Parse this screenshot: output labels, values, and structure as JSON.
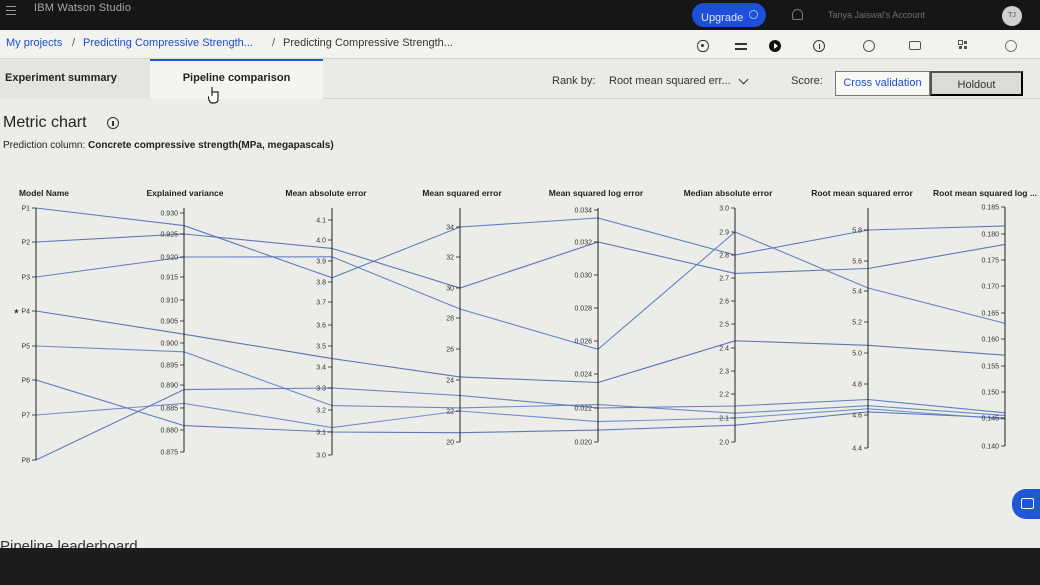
{
  "topbar": {
    "app_title": "IBM Watson Studio",
    "upgrade_label": "Upgrade",
    "account": "Tanya Jaiswal's Account",
    "avatar_initials": "TJ"
  },
  "breadcrumb": {
    "items": [
      "My projects",
      "Predicting Compressive Strength...",
      "Predicting Compressive Strength..."
    ]
  },
  "tabs": {
    "summary": "Experiment summary",
    "pipeline": "Pipeline comparison"
  },
  "rank": {
    "label": "Rank by:",
    "value": "Root mean squared err..."
  },
  "score": {
    "label": "Score:",
    "options": [
      "Cross validation",
      "Holdout"
    ]
  },
  "metric_chart": {
    "title": "Metric chart",
    "prediction_label": "Prediction column:",
    "prediction_value": "Concrete compressive strength(MPa, megapascals)"
  },
  "leaderboard_title": "Pipeline leaderboard",
  "chart_data": {
    "type": "parallel-coordinates",
    "axes": [
      {
        "name": "Model Name",
        "ticks": [
          "P1",
          "P2",
          "P3",
          "★ P4",
          "P5",
          "P6",
          "P7",
          "P8"
        ]
      },
      {
        "name": "Explained variance",
        "ticks": [
          "0.930",
          "0.925",
          "0.920",
          "0.915",
          "0.910",
          "0.905",
          "0.900",
          "0.895",
          "0.890",
          "0.885",
          "0.880",
          "0.875"
        ]
      },
      {
        "name": "Mean absolute error",
        "ticks": [
          "4.1",
          "4.0",
          "3.9",
          "3.8",
          "3.7",
          "3.6",
          "3.5",
          "3.4",
          "3.3",
          "3.2",
          "3.1",
          "3.0"
        ]
      },
      {
        "name": "Mean squared error",
        "ticks": [
          "34",
          "32",
          "30",
          "28",
          "26",
          "24",
          "22",
          "20"
        ]
      },
      {
        "name": "Mean squared log error",
        "ticks": [
          "0.034",
          "0.032",
          "0.030",
          "0.028",
          "0.026",
          "0.024",
          "0.022",
          "0.020"
        ]
      },
      {
        "name": "Median absolute error",
        "ticks": [
          "3.0",
          "2.9",
          "2.8",
          "2.7",
          "2.6",
          "2.5",
          "2.4",
          "2.3",
          "2.2",
          "2.1",
          "2.0"
        ]
      },
      {
        "name": "Root mean squared error",
        "ticks": [
          "5.8",
          "5.6",
          "5.4",
          "5.2",
          "5.0",
          "4.8",
          "4.6",
          "4.4"
        ]
      },
      {
        "name": "Root mean squared log ...",
        "ticks": [
          "0.185",
          "0.180",
          "0.175",
          "0.170",
          "0.165",
          "0.160",
          "0.155",
          "0.150",
          "0.145",
          "0.140"
        ]
      }
    ],
    "models": [
      {
        "name": "P1",
        "values": [
          "P1",
          0.927,
          3.82,
          34.0,
          0.0335,
          2.8,
          5.84,
          0.1815
        ]
      },
      {
        "name": "P2",
        "values": [
          "P2",
          0.925,
          3.96,
          30.0,
          0.032,
          2.72,
          5.55,
          0.178
        ]
      },
      {
        "name": "P3",
        "values": [
          "P3",
          0.92,
          3.92,
          28.6,
          0.0255,
          2.9,
          5.42,
          0.163
        ]
      },
      {
        "name": "P4",
        "values": [
          "P4",
          0.902,
          3.44,
          24.2,
          0.0235,
          2.43,
          5.05,
          0.157
        ]
      },
      {
        "name": "P5",
        "values": [
          "P5",
          0.898,
          3.22,
          22.2,
          0.0222,
          2.12,
          4.66,
          0.1455
        ]
      },
      {
        "name": "P6",
        "values": [
          "P6",
          0.881,
          3.1,
          20.6,
          0.0207,
          2.07,
          4.62,
          0.145
        ]
      },
      {
        "name": "P7",
        "values": [
          "P7",
          0.886,
          3.12,
          22.0,
          0.0212,
          2.1,
          4.64,
          0.1448
        ]
      },
      {
        "name": "P8",
        "values": [
          "P8",
          0.889,
          3.3,
          23.0,
          0.022,
          2.15,
          4.7,
          0.146
        ]
      }
    ]
  }
}
